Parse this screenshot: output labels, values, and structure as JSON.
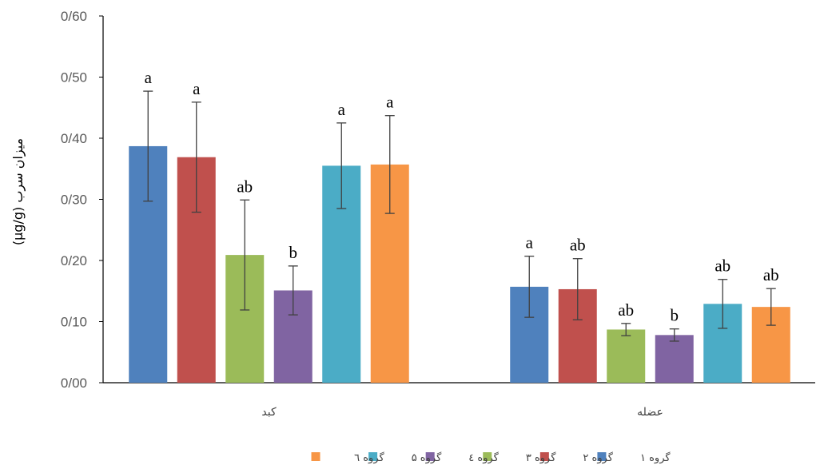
{
  "chart_data": {
    "type": "bar",
    "title": "",
    "xlabel": "",
    "ylabel": "میزان سرب (µg/g)",
    "ylim": [
      0,
      0.6
    ],
    "yticks": [
      "0/00",
      "0/10",
      "0/20",
      "0/30",
      "0/40",
      "0/50",
      "0/60"
    ],
    "grid": false,
    "legend_position": "bottom",
    "categories": [
      "کبد",
      "عضله"
    ],
    "series": [
      {
        "name": "گروه ۱",
        "color": "#4F81BD",
        "values": [
          0.387,
          0.157
        ],
        "errors": [
          0.09,
          0.05
        ],
        "labels": [
          "a",
          "a"
        ]
      },
      {
        "name": "گروه ۲",
        "color": "#C0504D",
        "values": [
          0.369,
          0.153
        ],
        "errors": [
          0.09,
          0.05
        ],
        "labels": [
          "a",
          "ab"
        ]
      },
      {
        "name": "گروه ۳",
        "color": "#9BBB59",
        "values": [
          0.209,
          0.087
        ],
        "errors": [
          0.09,
          0.01
        ],
        "labels": [
          "ab",
          "ab"
        ]
      },
      {
        "name": "گروه ٤",
        "color": "#8064A2",
        "values": [
          0.151,
          0.078
        ],
        "errors": [
          0.04,
          0.01
        ],
        "labels": [
          "b",
          "b"
        ]
      },
      {
        "name": "گروه ۵",
        "color": "#4BACC6",
        "values": [
          0.355,
          0.129
        ],
        "errors": [
          0.07,
          0.04
        ],
        "labels": [
          "a",
          "ab"
        ]
      },
      {
        "name": "گروه ٦",
        "color": "#F79646",
        "values": [
          0.357,
          0.124
        ],
        "errors": [
          0.08,
          0.03
        ],
        "labels": [
          "a",
          "ab"
        ]
      }
    ]
  }
}
